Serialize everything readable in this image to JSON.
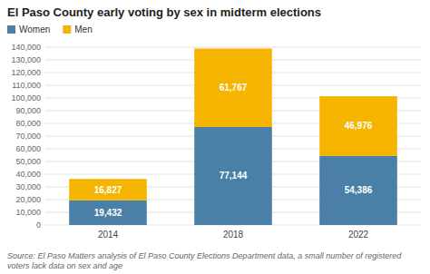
{
  "chart_data": {
    "type": "bar",
    "title": "El Paso County early voting by sex in midterm elections",
    "categories": [
      "2014",
      "2018",
      "2022"
    ],
    "series": [
      {
        "name": "Women",
        "color": "#4a7fa8",
        "values": [
          19432,
          77144,
          54386
        ],
        "value_labels": [
          "19,432",
          "77,144",
          "54,386"
        ]
      },
      {
        "name": "Men",
        "color": "#f5b400",
        "values": [
          16827,
          61767,
          46976
        ],
        "value_labels": [
          "16,827",
          "61,767",
          "46,976"
        ]
      }
    ],
    "stacked": true,
    "data_labels": true,
    "grid": true,
    "legend": "upper left",
    "ylim": [
      0,
      140000
    ],
    "yticks": [
      0,
      {
        "value": 10000,
        "label": "10,000"
      },
      {
        "value": 20000,
        "label": "20,000"
      },
      {
        "value": 30000,
        "label": "30,000"
      },
      {
        "value": 40000,
        "label": "40,000"
      },
      {
        "value": 50000,
        "label": "50,000"
      },
      {
        "value": 60000,
        "label": "60,000"
      },
      {
        "value": 70000,
        "label": "70,000"
      },
      {
        "value": 80000,
        "label": "80,000"
      },
      {
        "value": 90000,
        "label": "90,000"
      },
      {
        "value": 100000,
        "label": "100,000"
      },
      {
        "value": 110000,
        "label": "110,000"
      },
      {
        "value": 120000,
        "label": "120,000"
      },
      {
        "value": 130000,
        "label": "130,000"
      },
      {
        "value": 140000,
        "label": "140,000"
      }
    ],
    "annotations": [
      "Source: El Paso Matters analysis of El Paso County Elections Department data, a small number of registered voters lack data on sex and age"
    ]
  }
}
